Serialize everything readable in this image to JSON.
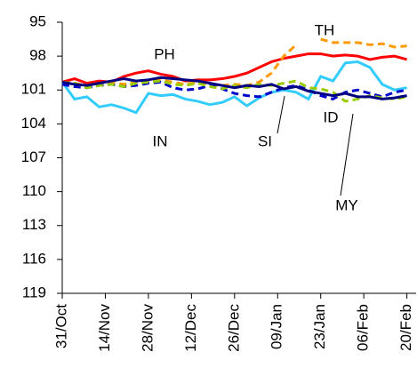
{
  "chart_data": {
    "type": "line",
    "x": [
      0,
      4,
      8,
      12,
      16,
      20,
      24,
      28,
      32,
      36,
      40,
      44,
      48,
      52,
      56,
      60,
      64,
      68,
      72,
      76,
      80,
      84,
      88,
      92,
      96,
      100,
      104,
      108,
      112
    ],
    "xlim": [
      0,
      115
    ],
    "xticks": [
      {
        "value": 0,
        "label": "31/Oct"
      },
      {
        "value": 14,
        "label": "14/Nov"
      },
      {
        "value": 28,
        "label": "28/Nov"
      },
      {
        "value": 42,
        "label": "12/Dec"
      },
      {
        "value": 56,
        "label": "26/Dec"
      },
      {
        "value": 70,
        "label": "09/Jan"
      },
      {
        "value": 84,
        "label": "23/Jan"
      },
      {
        "value": 98,
        "label": "06/Feb"
      },
      {
        "value": 112,
        "label": "20/Feb"
      }
    ],
    "ylim": [
      95,
      119
    ],
    "yticks": [
      95,
      98,
      101,
      104,
      107,
      110,
      113,
      116,
      119
    ],
    "y_inverted": true,
    "grid": false,
    "series": [
      {
        "name": "PH",
        "color": "#ff0000",
        "dashed": false,
        "values": [
          100.3,
          100,
          100.4,
          100.2,
          100.3,
          99.8,
          99.5,
          99.3,
          99.6,
          99.8,
          100.2,
          100.1,
          100.1,
          100,
          99.8,
          99.5,
          99,
          98.5,
          98.2,
          98,
          97.8,
          97.8,
          98,
          97.9,
          98,
          98.3,
          98.1,
          98,
          98.3
        ]
      },
      {
        "name": "TH",
        "color": "#ff9900",
        "dashed": true,
        "values": [
          100.3,
          100.4,
          100.6,
          100.4,
          100.3,
          100.5,
          100.3,
          100.2,
          100.1,
          100.3,
          100.5,
          100.3,
          100.5,
          100.6,
          100.5,
          100.6,
          100.3,
          99.5,
          98,
          97,
          null,
          96.5,
          96.8,
          96.8,
          96.8,
          97,
          96.9,
          97.2,
          97.1
        ]
      },
      {
        "name": "IN",
        "color": "#33ccff",
        "dashed": false,
        "values": [
          100.3,
          101.8,
          101.6,
          102.5,
          102.3,
          102.6,
          103,
          101.3,
          101.5,
          101.4,
          101.8,
          102,
          102.3,
          102.1,
          101.6,
          102.4,
          101.7,
          101.2,
          101,
          101.2,
          101.8,
          99.8,
          100.2,
          98.6,
          98.5,
          99,
          100.5,
          101,
          100.8
        ]
      },
      {
        "name": "SI",
        "color": "#0000cc",
        "dashed": true,
        "values": [
          100.5,
          100.7,
          100.8,
          100.6,
          100.5,
          100.7,
          100.6,
          100.4,
          100.3,
          100.8,
          101,
          100.9,
          100.6,
          100.9,
          101.3,
          101.5,
          101.6,
          101.2,
          100.8,
          100.6,
          101,
          101.5,
          101.8,
          101.2,
          101,
          101.3,
          101.6,
          101.2,
          101
        ]
      },
      {
        "name": "ID",
        "color": "#99cc00",
        "dashed": true,
        "values": [
          100.3,
          100.4,
          100.8,
          100.6,
          100.5,
          100.7,
          100.4,
          100.3,
          100.2,
          100.5,
          100.6,
          100.4,
          100.7,
          100.9,
          100.6,
          100.8,
          100.5,
          100.6,
          100.4,
          100.2,
          100.8,
          100.9,
          101.2,
          102,
          101.8,
          101.5,
          101.7,
          101.8,
          101.6
        ]
      },
      {
        "name": "MY",
        "color": "#000080",
        "dashed": false,
        "values": [
          100.3,
          100.5,
          100.6,
          100.4,
          100.2,
          100,
          100.2,
          100.1,
          99.9,
          100,
          100.1,
          100.2,
          100.4,
          100.6,
          100.8,
          100.6,
          100.7,
          100.5,
          100.9,
          100.7,
          101.1,
          101.3,
          101.5,
          101.3,
          101.6,
          101.6,
          101.8,
          101.7,
          101.5
        ]
      }
    ]
  }
}
